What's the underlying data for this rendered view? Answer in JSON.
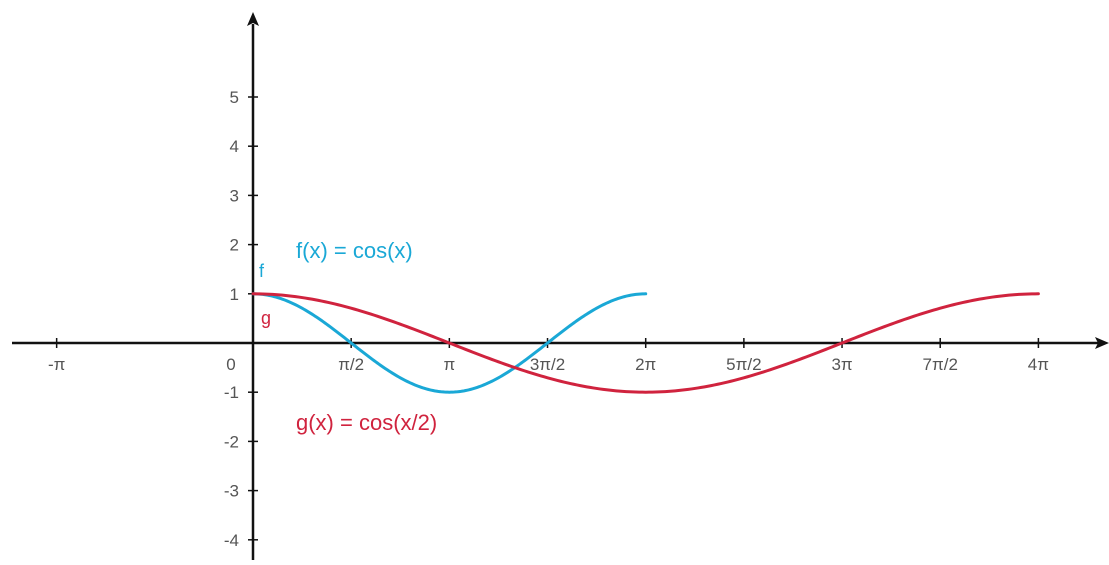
{
  "chart_data": {
    "type": "line",
    "title": "",
    "xlabel": "",
    "ylabel": "",
    "xlim": [
      -4.6,
      16.1
    ],
    "ylim": [
      -4.6,
      6.3
    ],
    "grid": false,
    "x_ticks": [
      {
        "value": -3.14159,
        "label": "-π"
      },
      {
        "value": 1.5708,
        "label": "π/2"
      },
      {
        "value": 3.14159,
        "label": "π"
      },
      {
        "value": 4.71239,
        "label": "3π/2"
      },
      {
        "value": 6.28319,
        "label": "2π"
      },
      {
        "value": 7.85398,
        "label": "5π/2"
      },
      {
        "value": 9.42478,
        "label": "3π"
      },
      {
        "value": 10.99557,
        "label": "7π/2"
      },
      {
        "value": 12.56637,
        "label": "4π"
      }
    ],
    "origin_label": "0",
    "y_ticks": [
      {
        "value": 5,
        "label": "5"
      },
      {
        "value": 4,
        "label": "4"
      },
      {
        "value": 3,
        "label": "3"
      },
      {
        "value": 2,
        "label": "2"
      },
      {
        "value": 1,
        "label": "1"
      },
      {
        "value": -1,
        "label": "-1"
      },
      {
        "value": -2,
        "label": "-2"
      },
      {
        "value": -3,
        "label": "-3"
      },
      {
        "value": -4,
        "label": "-4"
      }
    ],
    "series": [
      {
        "name": "f",
        "formula": "f(x) = cos(x)",
        "color": "#1aa8d6",
        "x_range": [
          0,
          6.28319
        ],
        "points": [
          [
            0,
            1
          ],
          [
            0.785,
            0.707
          ],
          [
            1.571,
            0
          ],
          [
            2.356,
            -0.707
          ],
          [
            3.142,
            -1
          ],
          [
            3.927,
            -0.707
          ],
          [
            4.712,
            0
          ],
          [
            5.498,
            0.707
          ],
          [
            6.283,
            1
          ]
        ]
      },
      {
        "name": "g",
        "formula": "g(x) = cos(x/2)",
        "color": "#d0233e",
        "x_range": [
          0,
          12.56637
        ],
        "points": [
          [
            0,
            1
          ],
          [
            1.571,
            0.707
          ],
          [
            3.142,
            0
          ],
          [
            4.712,
            -0.707
          ],
          [
            6.283,
            -1
          ],
          [
            7.854,
            -0.707
          ],
          [
            9.425,
            0
          ],
          [
            10.996,
            0.707
          ],
          [
            12.566,
            1
          ]
        ]
      }
    ]
  }
}
